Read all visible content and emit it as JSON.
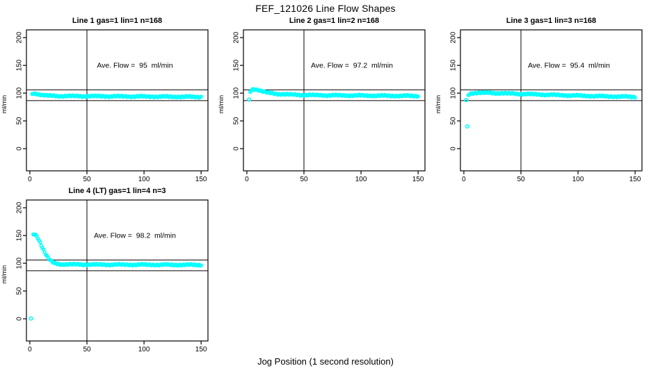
{
  "page": {
    "title": "FEF_121026  Line Flow Shapes",
    "xlabel": "Jog Position (1 second resolution)"
  },
  "chart_data": {
    "type": "scatter",
    "title": "FEF_121026  Line Flow Shapes",
    "xlabel": "Jog Position (1 second resolution)",
    "ylabel": "ml/min",
    "marker": "open-circle",
    "point_color": "#00FFFF",
    "line_color": "#000000",
    "grid": false,
    "layout": "2 rows x 3 cols, panels 1-4 used",
    "axis": {
      "xlim": [
        -3,
        156
      ],
      "ylim": [
        -40,
        214
      ],
      "xticks": [
        0,
        50,
        100,
        150
      ],
      "yticks": [
        0,
        50,
        100,
        150,
        200
      ]
    },
    "ref_lines": {
      "hlines": [
        106,
        86.5
      ],
      "vline_x": 50
    },
    "plots": [
      {
        "title": "Line 1 gas=1 lin=1 n=168",
        "annotation": "Ave. Flow =  95  ml/min",
        "ave_flow_ml_min": 95,
        "points": [
          [
            2,
            98.5
          ],
          [
            3,
            99.5
          ],
          [
            5,
            99.5
          ],
          [
            8,
            97.8
          ],
          [
            12,
            96.2
          ],
          [
            18,
            95.2
          ],
          [
            25,
            94.8
          ],
          [
            40,
            94.6
          ],
          [
            60,
            94.4
          ],
          [
            80,
            94.1
          ],
          [
            100,
            93.9
          ],
          [
            125,
            93.5
          ],
          [
            150,
            93.2
          ]
        ],
        "extra_points": []
      },
      {
        "title": "Line 2 gas=1 lin=2 n=168",
        "annotation": "Ave. Flow =  97.2  ml/min",
        "ave_flow_ml_min": 97.2,
        "points": [
          [
            3,
            102
          ],
          [
            4,
            105.5
          ],
          [
            5,
            107
          ],
          [
            7,
            107.3
          ],
          [
            9,
            106.3
          ],
          [
            12,
            104.3
          ],
          [
            16,
            101.8
          ],
          [
            20,
            100.2
          ],
          [
            26,
            98.8
          ],
          [
            35,
            97.6
          ],
          [
            50,
            96.6
          ],
          [
            70,
            96.1
          ],
          [
            90,
            95.8
          ],
          [
            115,
            95.4
          ],
          [
            135,
            95.1
          ],
          [
            150,
            94.9
          ]
        ],
        "extra_points": [
          [
            2,
            88.5
          ]
        ]
      },
      {
        "title": "Line 3 gas=1 lin=3 n=168",
        "annotation": "Ave. Flow =  95.4  ml/min",
        "ave_flow_ml_min": 95.4,
        "points": [
          [
            4,
            96.5
          ],
          [
            5,
            98.5
          ],
          [
            7,
            100
          ],
          [
            12,
            100.7
          ],
          [
            20,
            100.5
          ],
          [
            30,
            100
          ],
          [
            45,
            99
          ],
          [
            60,
            98
          ],
          [
            75,
            97
          ],
          [
            90,
            96
          ],
          [
            105,
            95.2
          ],
          [
            120,
            94.4
          ],
          [
            135,
            93.8
          ],
          [
            150,
            93.3
          ]
        ],
        "extra_points": [
          [
            2,
            87.5
          ],
          [
            3,
            40
          ]
        ]
      },
      {
        "title": "Line 4 (LT) gas=1 lin=4 n=3",
        "annotation": "Ave. Flow =  98.2  ml/min",
        "ave_flow_ml_min": 98.2,
        "points": [
          [
            3,
            152
          ],
          [
            4,
            152.5
          ],
          [
            5,
            151.5
          ],
          [
            6,
            149
          ],
          [
            7,
            146
          ],
          [
            8,
            142
          ],
          [
            9,
            137.5
          ],
          [
            10,
            133
          ],
          [
            11,
            128.5
          ],
          [
            12,
            124
          ],
          [
            13,
            120
          ],
          [
            14,
            116
          ],
          [
            15,
            112.5
          ],
          [
            16,
            109.5
          ],
          [
            17,
            107
          ],
          [
            18,
            105
          ],
          [
            19,
            103
          ],
          [
            20,
            101.5
          ],
          [
            21,
            100.5
          ],
          [
            22,
            99.8
          ],
          [
            24,
            99
          ],
          [
            27,
            98.4
          ],
          [
            32,
            98
          ],
          [
            45,
            97.8
          ],
          [
            60,
            97.6
          ],
          [
            80,
            97.5
          ],
          [
            100,
            97.4
          ],
          [
            125,
            97.2
          ],
          [
            150,
            97.1
          ]
        ],
        "extra_points": [
          [
            1,
            0.5
          ]
        ]
      }
    ]
  }
}
